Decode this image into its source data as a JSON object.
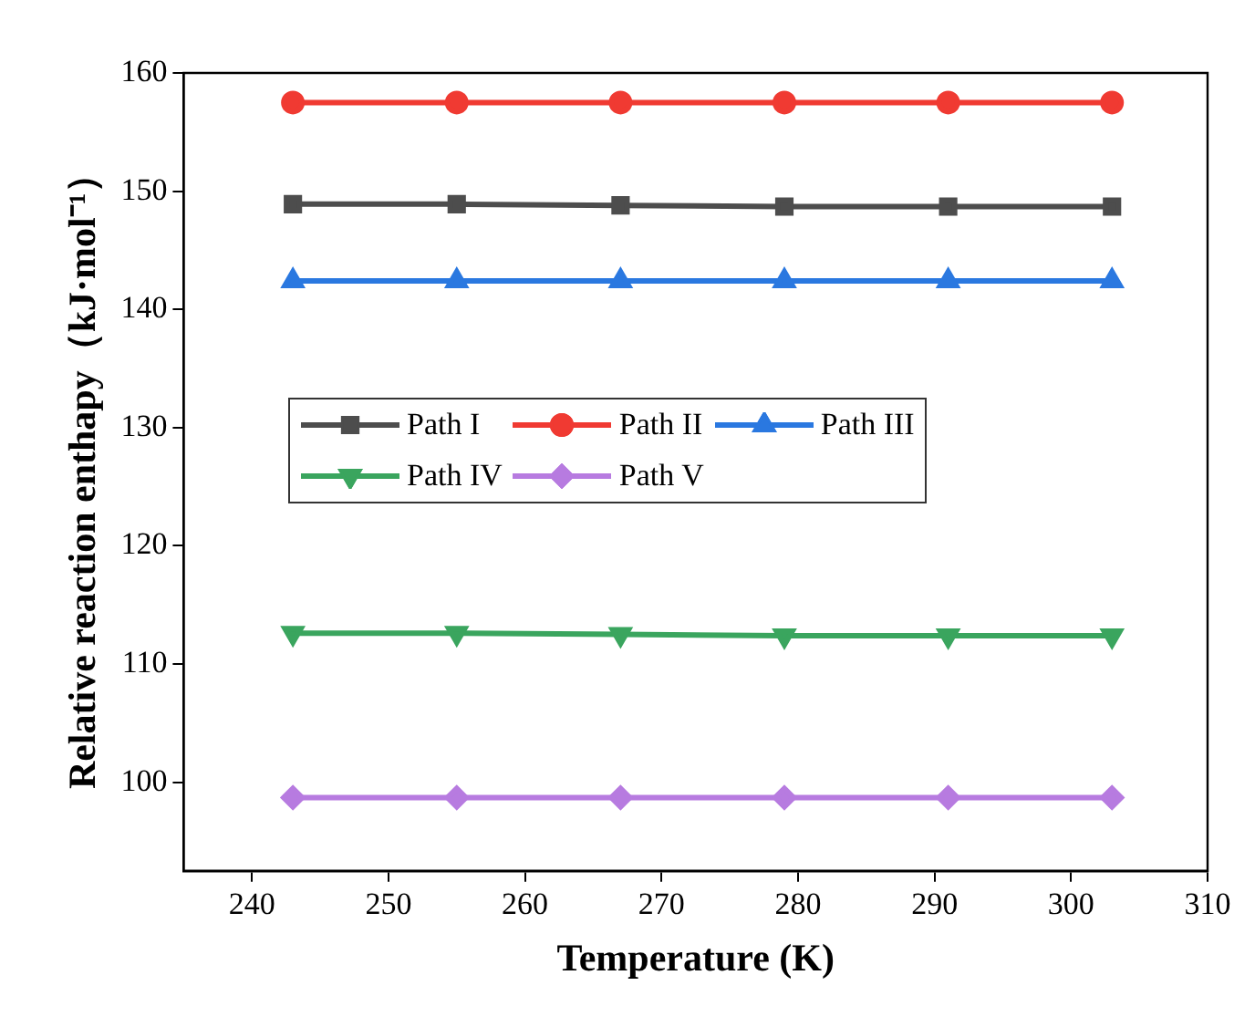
{
  "chart_data": {
    "type": "line",
    "xlabel": "Temperature (K)",
    "ylabel": "Relative reaction enthapy（kJ·mol⁻¹）",
    "x": [
      243,
      255,
      267,
      279,
      291,
      303
    ],
    "series": [
      {
        "name": "Path I",
        "color": "#4d4d4d",
        "marker": "square",
        "values": [
          148.9,
          148.9,
          148.8,
          148.7,
          148.7,
          148.7
        ]
      },
      {
        "name": "Path II",
        "color": "#f03a32",
        "marker": "circle",
        "values": [
          157.5,
          157.5,
          157.5,
          157.5,
          157.5,
          157.5
        ]
      },
      {
        "name": "Path III",
        "color": "#2a78e0",
        "marker": "triangle",
        "values": [
          142.4,
          142.4,
          142.4,
          142.4,
          142.4,
          142.4
        ]
      },
      {
        "name": "Path IV",
        "color": "#3aa55e",
        "marker": "triangle-down",
        "values": [
          112.6,
          112.6,
          112.5,
          112.4,
          112.4,
          112.4
        ]
      },
      {
        "name": "Path V",
        "color": "#b77be0",
        "marker": "diamond",
        "values": [
          98.7,
          98.7,
          98.7,
          98.7,
          98.7,
          98.7
        ]
      }
    ],
    "xlim": [
      235,
      310
    ],
    "xticks": [
      240,
      250,
      260,
      270,
      280,
      290,
      300,
      310
    ],
    "ylim": [
      92.5,
      160
    ],
    "yticks": [
      100,
      110,
      120,
      130,
      140,
      150,
      160
    ],
    "grid": false,
    "legend": "center left",
    "line_style": "solid"
  }
}
